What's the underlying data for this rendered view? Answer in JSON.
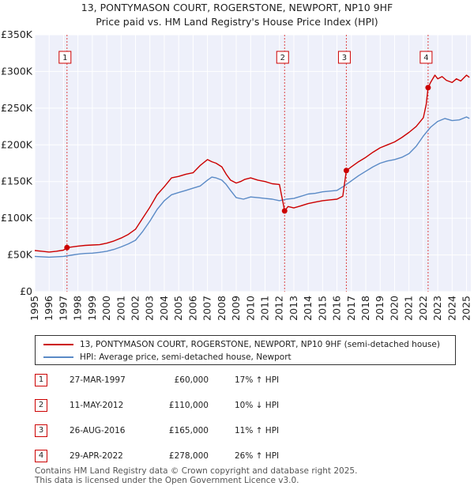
{
  "chart_data": {
    "type": "line",
    "title": "13, PONTYMASON COURT, ROGERSTONE, NEWPORT, NP10 9HF",
    "subtitle": "Price paid vs. HM Land Registry's House Price Index (HPI)",
    "xlim": [
      1995,
      2025.3
    ],
    "ylim": [
      0,
      350000
    ],
    "x_ticks": [
      1995,
      1996,
      1997,
      1998,
      1999,
      2000,
      2001,
      2002,
      2003,
      2004,
      2005,
      2006,
      2007,
      2008,
      2009,
      2010,
      2011,
      2012,
      2013,
      2014,
      2015,
      2016,
      2017,
      2018,
      2019,
      2020,
      2021,
      2022,
      2023,
      2024,
      2025
    ],
    "y_ticks": [
      {
        "value": 0,
        "label": "£0"
      },
      {
        "value": 50000,
        "label": "£50K"
      },
      {
        "value": 100000,
        "label": "£100K"
      },
      {
        "value": 150000,
        "label": "£150K"
      },
      {
        "value": 200000,
        "label": "£200K"
      },
      {
        "value": 250000,
        "label": "£250K"
      },
      {
        "value": 300000,
        "label": "£300K"
      },
      {
        "value": 350000,
        "label": "£350K"
      }
    ],
    "series": [
      {
        "name": "13, PONTYMASON COURT, ROGERSTONE, NEWPORT, NP10 9HF (semi-detached house)",
        "color": "#cc0000",
        "x": [
          1995,
          1995.5,
          1996,
          1996.5,
          1997,
          1997.24,
          1997.6,
          1998,
          1998.5,
          1999,
          1999.5,
          2000,
          2000.5,
          2001,
          2001.5,
          2002,
          2002.5,
          2003,
          2003.5,
          2004,
          2004.5,
          2005,
          2005.5,
          2006,
          2006.5,
          2007,
          2007.3,
          2007.6,
          2008,
          2008.3,
          2008.6,
          2009,
          2009.3,
          2009.6,
          2010,
          2010.5,
          2011,
          2011.5,
          2012,
          2012.36,
          2012.6,
          2013,
          2013.5,
          2014,
          2014.5,
          2015,
          2015.5,
          2016,
          2016.4,
          2016.65,
          2017,
          2017.5,
          2018,
          2018.5,
          2019,
          2019.5,
          2020,
          2020.5,
          2021,
          2021.5,
          2022,
          2022.2,
          2022.33,
          2022.5,
          2022.8,
          2023,
          2023.3,
          2023.6,
          2024,
          2024.3,
          2024.6,
          2025,
          2025.2
        ],
        "values": [
          56000,
          55000,
          54000,
          55000,
          56500,
          60000,
          61000,
          62000,
          63000,
          63500,
          64000,
          66000,
          69000,
          73000,
          78000,
          85000,
          100000,
          115000,
          132000,
          143000,
          155000,
          157000,
          160000,
          162000,
          172000,
          180000,
          177000,
          175000,
          170000,
          160000,
          152000,
          148000,
          150000,
          153000,
          155000,
          152000,
          150000,
          147000,
          146000,
          110000,
          116000,
          114000,
          117000,
          120000,
          122000,
          124000,
          125000,
          126000,
          130000,
          165000,
          170000,
          177000,
          183000,
          190000,
          196000,
          200000,
          204000,
          210000,
          217000,
          225000,
          237000,
          255000,
          278000,
          285000,
          295000,
          290000,
          293000,
          288000,
          285000,
          290000,
          287000,
          295000,
          292000
        ]
      },
      {
        "name": "HPI: Average price, semi-detached house, Newport",
        "color": "#5a8ac6",
        "x": [
          1995,
          1995.5,
          1996,
          1996.5,
          1997,
          1997.5,
          1998,
          1998.5,
          1999,
          1999.5,
          2000,
          2000.5,
          2001,
          2001.5,
          2002,
          2002.5,
          2003,
          2003.5,
          2004,
          2004.5,
          2005,
          2005.5,
          2006,
          2006.5,
          2007,
          2007.3,
          2007.6,
          2008,
          2008.3,
          2008.6,
          2009,
          2009.5,
          2010,
          2010.5,
          2011,
          2011.5,
          2012,
          2012.5,
          2013,
          2013.5,
          2014,
          2014.5,
          2015,
          2015.5,
          2016,
          2016.5,
          2017,
          2017.5,
          2018,
          2018.5,
          2019,
          2019.5,
          2020,
          2020.5,
          2021,
          2021.5,
          2022,
          2022.5,
          2023,
          2023.5,
          2024,
          2024.5,
          2025,
          2025.2
        ],
        "values": [
          48000,
          47500,
          47000,
          47500,
          48000,
          49500,
          51000,
          52000,
          52500,
          53500,
          55000,
          57500,
          61000,
          65000,
          70000,
          82000,
          96000,
          112000,
          124000,
          132000,
          135000,
          138000,
          141000,
          144000,
          152000,
          156000,
          155000,
          152000,
          146000,
          138000,
          128000,
          126000,
          129000,
          128000,
          127000,
          126000,
          124000,
          126000,
          127000,
          130000,
          133000,
          134000,
          136000,
          137000,
          138000,
          144000,
          151000,
          158000,
          164000,
          170000,
          175000,
          178000,
          180000,
          183000,
          188000,
          198000,
          212000,
          224000,
          232000,
          236000,
          233000,
          234000,
          238000,
          236000
        ]
      }
    ],
    "transactions": [
      {
        "label": "1",
        "x": 1997.24,
        "value": 60000
      },
      {
        "label": "2",
        "x": 2012.36,
        "value": 110000
      },
      {
        "label": "3",
        "x": 2016.65,
        "value": 165000
      },
      {
        "label": "4",
        "x": 2022.33,
        "value": 278000
      }
    ]
  },
  "legend": {
    "property": "13, PONTYMASON COURT, ROGERSTONE, NEWPORT, NP10 9HF (semi-detached house)",
    "hpi": "HPI: Average price, semi-detached house, Newport",
    "property_color": "#cc0000",
    "hpi_color": "#5a8ac6"
  },
  "sales": [
    {
      "num": "1",
      "date": "27-MAR-1997",
      "price": "£60,000",
      "hpi": "17% ↑ HPI"
    },
    {
      "num": "2",
      "date": "11-MAY-2012",
      "price": "£110,000",
      "hpi": "10% ↓ HPI"
    },
    {
      "num": "3",
      "date": "26-AUG-2016",
      "price": "£165,000",
      "hpi": "11% ↑ HPI"
    },
    {
      "num": "4",
      "date": "29-APR-2022",
      "price": "£278,000",
      "hpi": "26% ↑ HPI"
    }
  ],
  "footer": {
    "line1": "Contains HM Land Registry data © Crown copyright and database right 2025.",
    "line2": "This data is licensed under the Open Government Licence v3.0."
  }
}
